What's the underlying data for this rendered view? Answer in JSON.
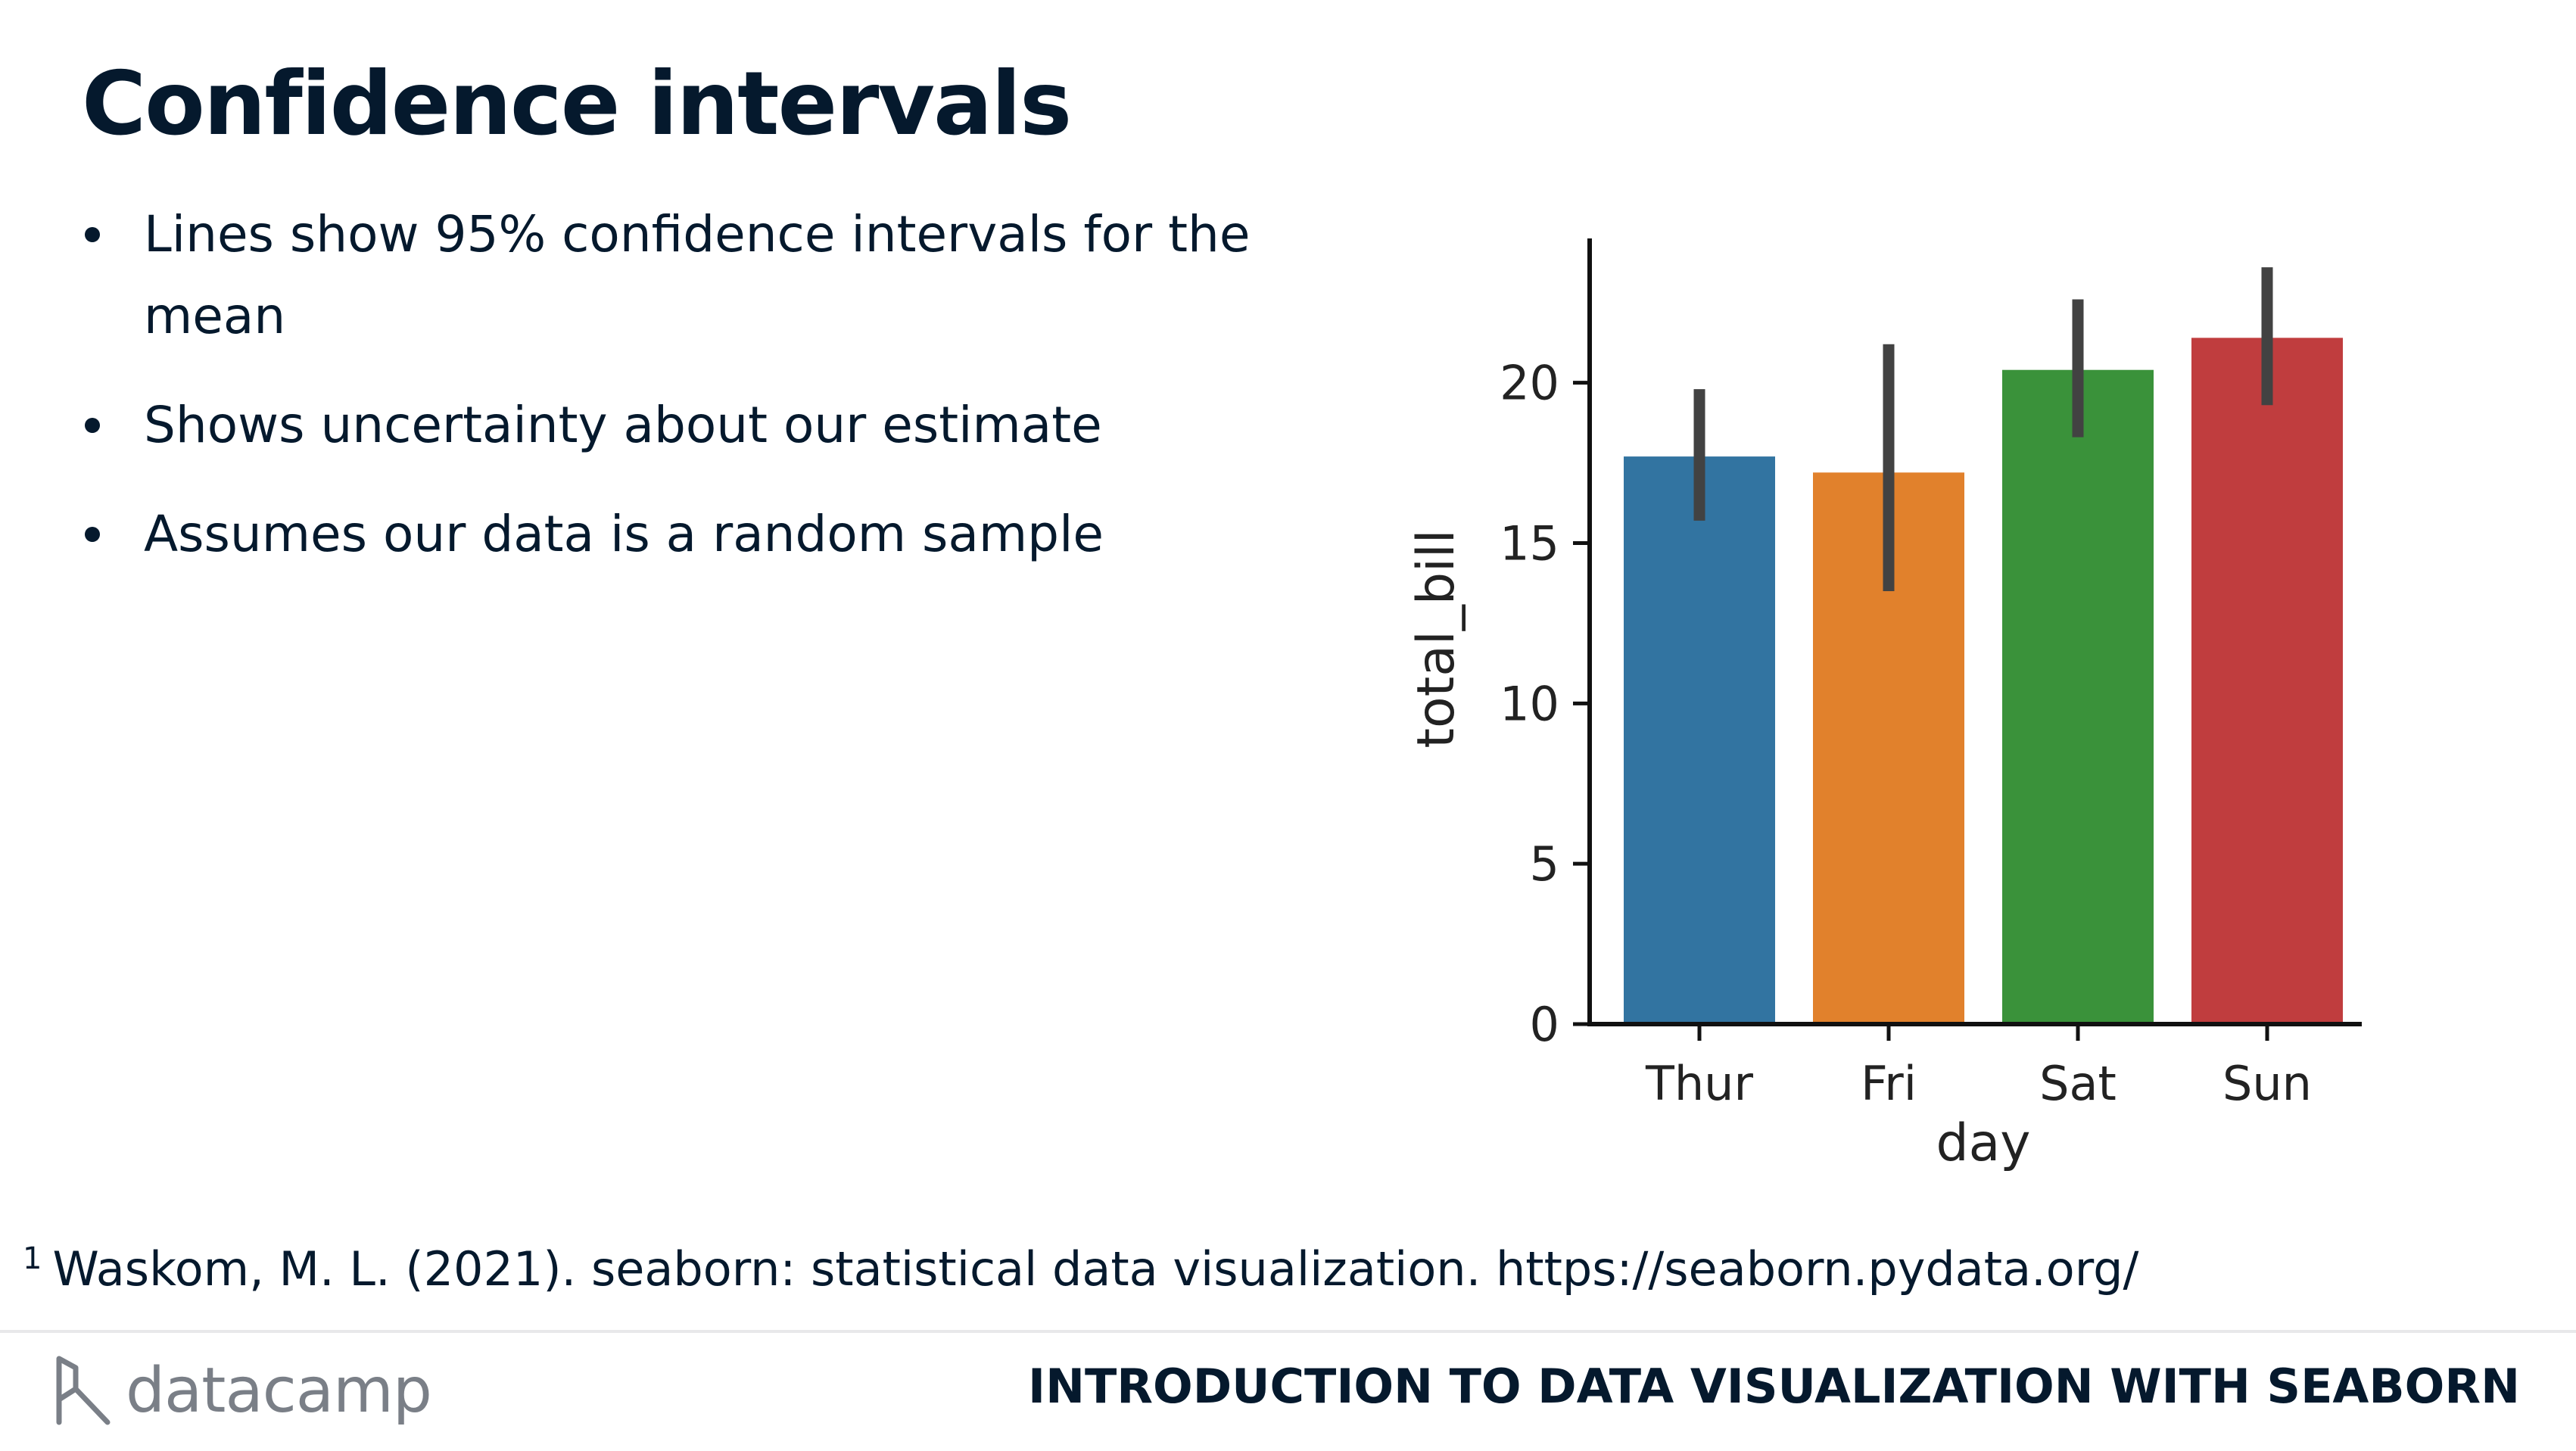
{
  "slide": {
    "title": "Confidence intervals",
    "bullets": [
      "Lines show 95% confidence intervals for the mean",
      "Shows uncertainty about our estimate",
      "Assumes our data is a random sample"
    ],
    "footnote_marker": "1",
    "footnote": "Waskom, M. L. (2021). seaborn: statistical data visualization. https://seaborn.pydata.org/"
  },
  "footer": {
    "logo_text": "datacamp",
    "course_name": "INTRODUCTION TO DATA VISUALIZATION WITH SEABORN"
  },
  "chart_data": {
    "type": "bar",
    "xlabel": "day",
    "ylabel": "total_bill",
    "categories": [
      "Thur",
      "Fri",
      "Sat",
      "Sun"
    ],
    "values": [
      17.7,
      17.2,
      20.4,
      21.4
    ],
    "ci_low": [
      15.7,
      13.5,
      18.3,
      19.3
    ],
    "ci_high": [
      19.8,
      21.2,
      22.6,
      23.6
    ],
    "colors": [
      "#3274a1",
      "#e1812c",
      "#3a923a",
      "#c03d3e"
    ],
    "yticks": [
      0,
      5,
      10,
      15,
      20
    ],
    "ylim": [
      0,
      24.5
    ],
    "grid": false
  }
}
